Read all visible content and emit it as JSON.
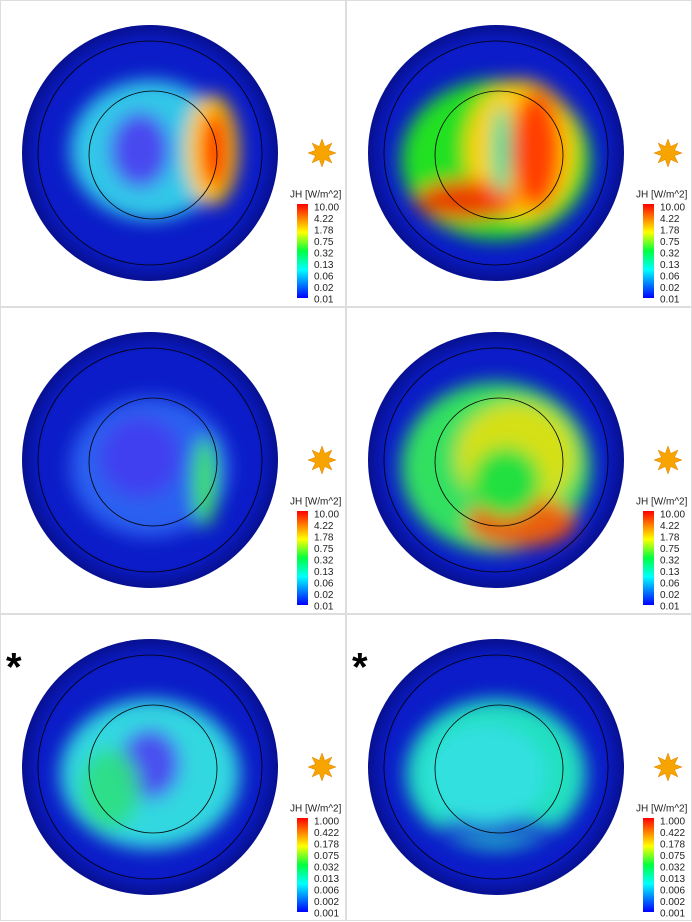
{
  "panels": [
    {
      "colorbar": {
        "title": "JH [W/m^2]",
        "ticks": [
          "10.00",
          "4.22",
          "1.78",
          "0.75",
          "0.32",
          "0.13",
          "0.06",
          "0.02",
          "0.01"
        ]
      }
    },
    {
      "colorbar": {
        "title": "JH [W/m^2]",
        "ticks": [
          "10.00",
          "4.22",
          "1.78",
          "0.75",
          "0.32",
          "0.13",
          "0.06",
          "0.02",
          "0.01"
        ]
      }
    },
    {
      "colorbar": {
        "title": "JH [W/m^2]",
        "ticks": [
          "10.00",
          "4.22",
          "1.78",
          "0.75",
          "0.32",
          "0.13",
          "0.06",
          "0.02",
          "0.01"
        ]
      }
    },
    {
      "colorbar": {
        "title": "JH [W/m^2]",
        "ticks": [
          "10.00",
          "4.22",
          "1.78",
          "0.75",
          "0.32",
          "0.13",
          "0.06",
          "0.02",
          "0.01"
        ]
      }
    },
    {
      "marker": "*",
      "colorbar": {
        "title": "JH [W/m^2]",
        "ticks": [
          "1.000",
          "0.422",
          "0.178",
          "0.075",
          "0.032",
          "0.013",
          "0.006",
          "0.002",
          "0.001"
        ]
      }
    },
    {
      "marker": "*",
      "colorbar": {
        "title": "JH [W/m^2]",
        "ticks": [
          "1.000",
          "0.422",
          "0.178",
          "0.075",
          "0.032",
          "0.013",
          "0.006",
          "0.002",
          "0.001"
        ]
      }
    }
  ]
}
